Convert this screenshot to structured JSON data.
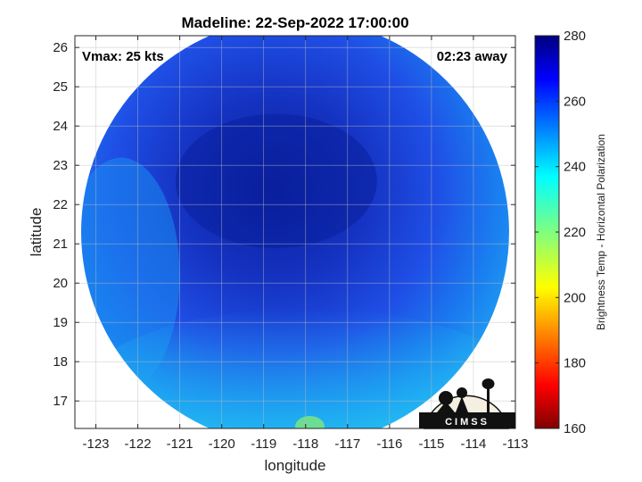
{
  "chart_data": {
    "type": "heatmap",
    "title": "Madeline: 22-Sep-2022 17:00:00",
    "xlabel": "longitude",
    "ylabel": "latitude",
    "xlim": [
      -123.5,
      -113
    ],
    "ylim": [
      16.3,
      26.3
    ],
    "xticks": [
      "-123",
      "-122",
      "-121",
      "-120",
      "-119",
      "-118",
      "-117",
      "-116",
      "-115",
      "-114",
      "-113"
    ],
    "xtick_values": [
      -123,
      -122,
      -121,
      -120,
      -119,
      -118,
      -117,
      -116,
      -115,
      -114,
      -113
    ],
    "yticks": [
      "17",
      "18",
      "19",
      "20",
      "21",
      "22",
      "23",
      "24",
      "25",
      "26"
    ],
    "ytick_values": [
      17,
      18,
      19,
      20,
      21,
      22,
      23,
      24,
      25,
      26
    ],
    "grid": true,
    "annotations": {
      "vmax": "Vmax: 25 kts",
      "time_away": "02:23 away"
    },
    "swath": {
      "center": [
        -118.25,
        21.3
      ],
      "radius_deg": 5.1
    },
    "field_description_ranges": {
      "core_min_K": 262,
      "outer_band_K": 235,
      "southeast_warm_K": 233
    },
    "colorbar": {
      "label": "Brightness Temp - Horizontal Polarization",
      "range": [
        160,
        280
      ],
      "ticks": [
        "280",
        "260",
        "240",
        "220",
        "200",
        "180",
        "160"
      ],
      "tick_values": [
        280,
        260,
        240,
        220,
        200,
        180,
        160
      ],
      "colormap": "jet"
    },
    "logo": "CIMSS"
  },
  "colors": {
    "core": "#0a1f9c",
    "mid": "#1f4fe6",
    "outer": "#1a8df0",
    "edge": "#22c8f2",
    "warm_spot": "#7fe87a"
  }
}
